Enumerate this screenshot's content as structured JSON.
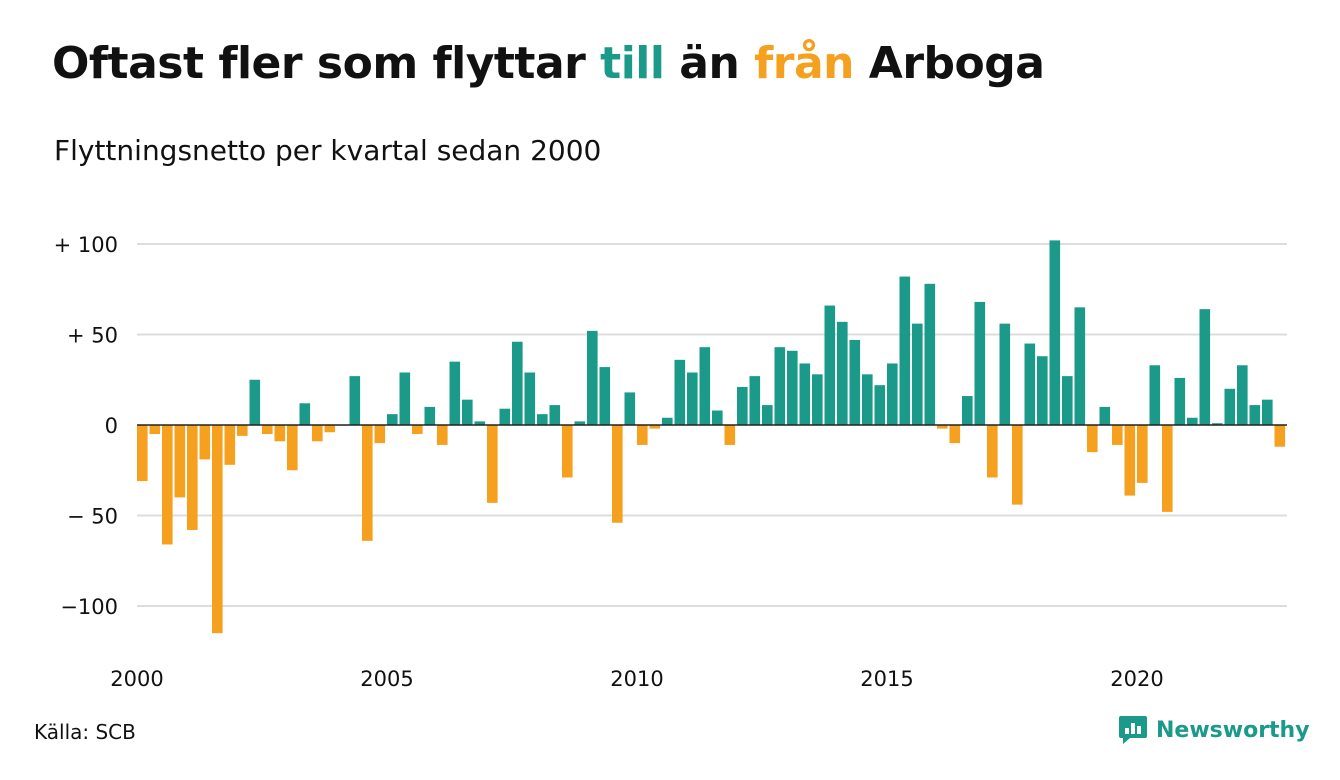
{
  "header": {
    "title_parts": [
      "Oftast fler som flyttar ",
      "till",
      " än ",
      "från",
      " Arboga"
    ],
    "subtitle": "Flyttningsnetto per kvartal sedan 2000"
  },
  "footer": {
    "source": "Källa: SCB",
    "brand": "Newsworthy",
    "brand_icon": "bar-chart-speech-bubble-icon"
  },
  "colors": {
    "positive": "#1b9a8a",
    "negative": "#f5a01e",
    "grid": "#dddddd",
    "baseline": "#222222",
    "text": "#111111"
  },
  "chart_data": {
    "type": "bar",
    "title": "Oftast fler som flyttar till än från Arboga",
    "subtitle": "Flyttningsnetto per kvartal sedan 2000",
    "xlabel": "",
    "ylabel": "",
    "x_start": 2000,
    "periods_per_year": 4,
    "x_tick_labels": [
      "2000",
      "2005",
      "2010",
      "2015",
      "2020"
    ],
    "y_tick_values": [
      100,
      50,
      0,
      -50,
      -100
    ],
    "y_tick_labels": [
      "+ 100",
      "+  50",
      "0",
      "− 50",
      "−100"
    ],
    "ylim": [
      -118,
      105
    ],
    "grid": true,
    "legend": "none",
    "values": [
      -31,
      -5,
      -66,
      -40,
      -58,
      -19,
      -115,
      -22,
      -6,
      25,
      -5,
      -9,
      -25,
      12,
      -9,
      -4,
      0,
      27,
      -64,
      -10,
      6,
      29,
      -5,
      10,
      -11,
      35,
      14,
      2,
      -43,
      9,
      46,
      29,
      6,
      11,
      -29,
      2,
      52,
      32,
      -54,
      18,
      -11,
      -2,
      4,
      36,
      29,
      43,
      8,
      -11,
      21,
      27,
      11,
      43,
      41,
      34,
      28,
      66,
      57,
      47,
      28,
      22,
      34,
      82,
      56,
      78,
      -2,
      -10,
      16,
      68,
      -29,
      56,
      -44,
      45,
      38,
      102,
      27,
      65,
      -15,
      10,
      -11,
      -39,
      -32,
      33,
      -48,
      26,
      4,
      64,
      1,
      20,
      33,
      11,
      14,
      -12
    ]
  }
}
